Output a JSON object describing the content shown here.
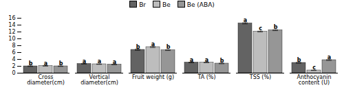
{
  "chart_data": {
    "type": "bar",
    "categories": [
      "Cross diameter(cm)",
      "Vertical diameter(cm)",
      "Fruit weight (g)",
      "TA (%)",
      "TSS (%)",
      "Anthocyanin content (U)"
    ],
    "series": [
      {
        "name": "Br",
        "color": "#636363",
        "values": [
          2.0,
          2.7,
          6.8,
          3.1,
          14.5,
          3.0
        ],
        "errors": [
          0.08,
          0.06,
          0.2,
          0.1,
          0.18,
          0.14
        ],
        "labels": [
          "b",
          "a",
          "b",
          "a",
          "a",
          "b"
        ]
      },
      {
        "name": "Be",
        "color": "#bdbdbd",
        "values": [
          2.1,
          2.6,
          7.6,
          3.1,
          12.1,
          0.8
        ],
        "errors": [
          0.06,
          0.05,
          0.18,
          0.08,
          0.13,
          0.05
        ],
        "labels": [
          "a",
          "a",
          "a",
          "a",
          "c",
          "c"
        ]
      },
      {
        "name": "Be (ABA)",
        "color": "#969696",
        "values": [
          2.0,
          2.5,
          6.7,
          2.8,
          12.5,
          3.8
        ],
        "errors": [
          0.06,
          0.06,
          0.12,
          0.08,
          0.13,
          0.12
        ],
        "labels": [
          "b",
          "a",
          "b",
          "b",
          "b",
          "a"
        ]
      }
    ],
    "ylim": [
      0,
      16
    ],
    "yticks": [
      0,
      2,
      4,
      6,
      8,
      10,
      12,
      14,
      16
    ],
    "legend": "top",
    "grid": false
  }
}
